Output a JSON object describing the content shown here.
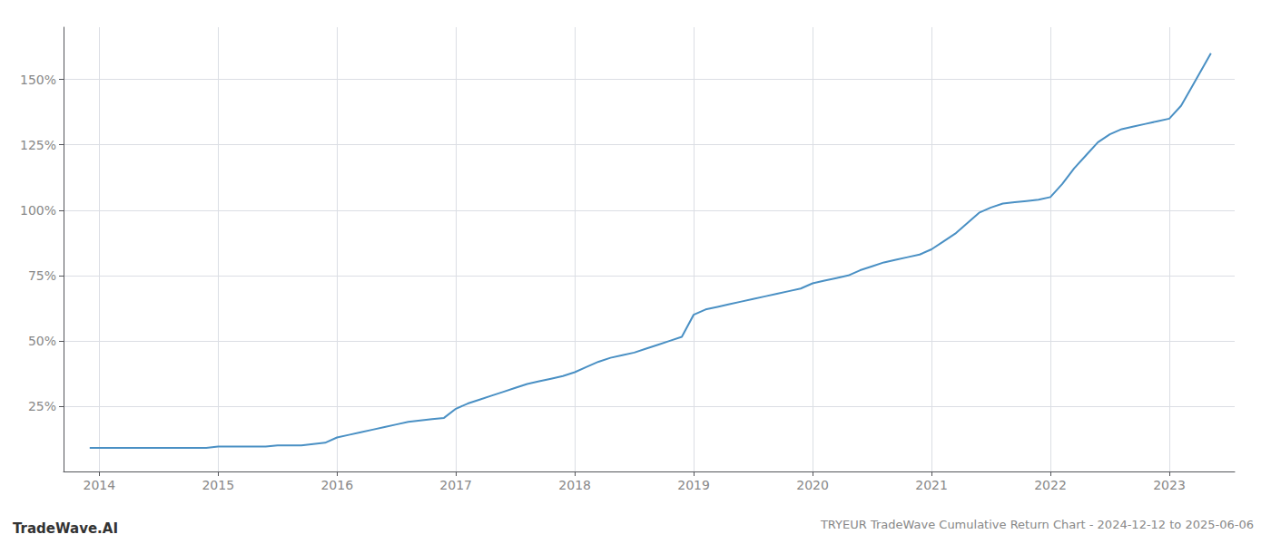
{
  "chart_data": {
    "type": "line",
    "title": "TRYEUR TradeWave Cumulative Return Chart - 2024-12-12 to 2025-06-06",
    "annotations": [
      "TradeWave.AI"
    ],
    "color": "#4a90c4",
    "grid": true,
    "x": [
      2013.92,
      2014.0,
      2014.1,
      2014.2,
      2014.3,
      2014.4,
      2014.5,
      2014.6,
      2014.7,
      2014.8,
      2014.9,
      2015.0,
      2015.1,
      2015.2,
      2015.3,
      2015.4,
      2015.5,
      2015.6,
      2015.7,
      2015.8,
      2015.9,
      2016.0,
      2016.1,
      2016.2,
      2016.3,
      2016.4,
      2016.5,
      2016.6,
      2016.7,
      2016.8,
      2016.9,
      2017.0,
      2017.1,
      2017.2,
      2017.3,
      2017.4,
      2017.5,
      2017.6,
      2017.7,
      2017.8,
      2017.9,
      2018.0,
      2018.1,
      2018.2,
      2018.3,
      2018.4,
      2018.5,
      2018.6,
      2018.7,
      2018.8,
      2018.9,
      2019.0,
      2019.1,
      2019.2,
      2019.3,
      2019.4,
      2019.5,
      2019.6,
      2019.7,
      2019.8,
      2019.9,
      2020.0,
      2020.1,
      2020.2,
      2020.3,
      2020.4,
      2020.5,
      2020.6,
      2020.7,
      2020.8,
      2020.9,
      2021.0,
      2021.1,
      2021.2,
      2021.3,
      2021.4,
      2021.5,
      2021.6,
      2021.7,
      2021.8,
      2021.9,
      2022.0,
      2022.1,
      2022.2,
      2022.3,
      2022.4,
      2022.5,
      2022.6,
      2022.7,
      2022.8,
      2022.9,
      2023.0,
      2023.1,
      2023.2,
      2023.35
    ],
    "values": [
      9,
      9,
      9,
      9,
      9,
      9,
      9,
      9,
      9,
      9,
      9,
      9.5,
      9.5,
      9.5,
      9.5,
      9.5,
      10,
      10,
      10,
      10.5,
      11,
      13,
      14,
      15,
      16,
      17,
      18,
      19,
      19.5,
      20,
      20.5,
      24,
      26,
      27.5,
      29,
      30.5,
      32,
      33.5,
      34.5,
      35.5,
      36.5,
      38,
      40,
      42,
      43.5,
      44.5,
      45.5,
      47,
      48.5,
      50,
      51.5,
      60,
      62,
      63,
      64,
      65,
      66,
      67,
      68,
      69,
      70,
      72,
      73,
      74,
      75,
      77,
      78.5,
      80,
      81,
      82,
      83,
      85,
      88,
      91,
      95,
      99,
      101,
      102.5,
      103,
      103.5,
      104,
      105,
      110,
      116,
      121,
      126,
      129,
      131,
      132,
      133,
      134,
      135,
      140,
      148,
      160
    ],
    "xlim": [
      2013.7,
      2023.55
    ],
    "ylim": [
      0,
      170
    ],
    "xticks": [
      2014,
      2015,
      2016,
      2017,
      2018,
      2019,
      2020,
      2021,
      2022,
      2023
    ],
    "yticks": [
      {
        "value": 25,
        "label": "25%"
      },
      {
        "value": 50,
        "label": "50%"
      },
      {
        "value": 75,
        "label": "75%"
      },
      {
        "value": 100,
        "label": "100%"
      },
      {
        "value": 125,
        "label": "125%"
      },
      {
        "value": 150,
        "label": "150%"
      }
    ]
  }
}
